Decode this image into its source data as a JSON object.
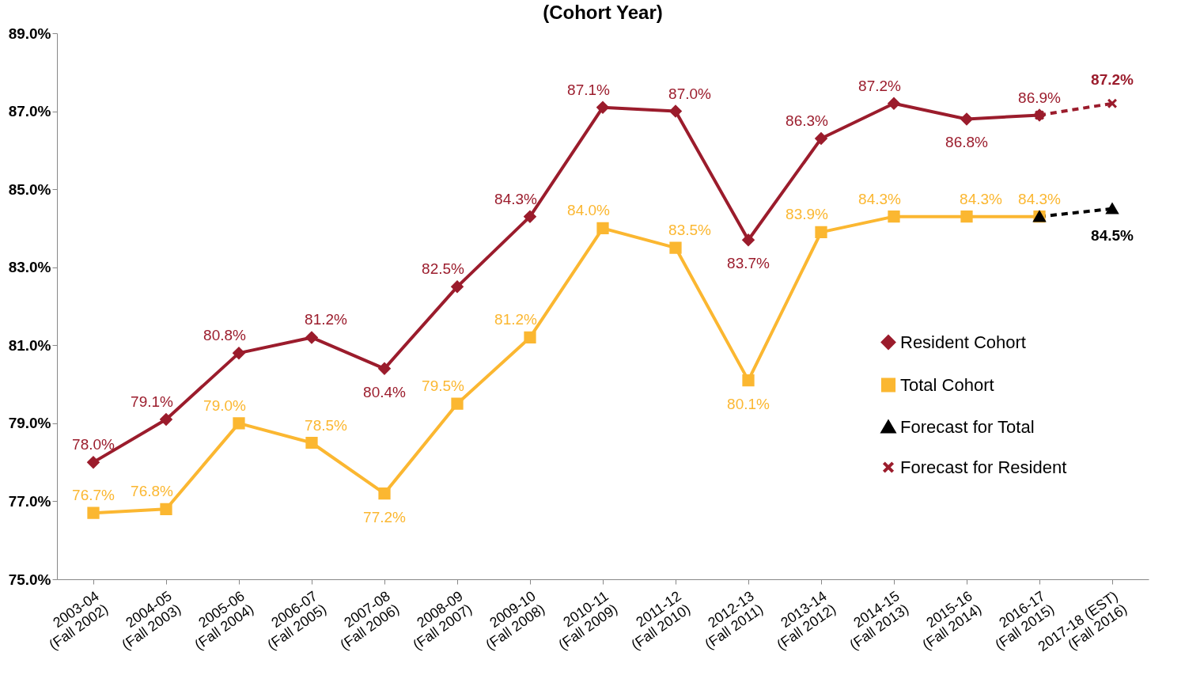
{
  "chart_data": {
    "type": "line",
    "title": "(Cohort Year)",
    "categories": [
      "2003-04\n(Fall 2002)",
      "2004-05\n(Fall 2003)",
      "2005-06\n(Fall 2004)",
      "2006-07\n(Fall 2005)",
      "2007-08\n(Fall 2006)",
      "2008-09\n(Fall 2007)",
      "2009-10\n(Fall 2008)",
      "2010-11\n(Fall 2009)",
      "2011-12\n(Fall 2010)",
      "2012-13\n(Fall 2011)",
      "2013-14\n(Fall 2012)",
      "2014-15\n(Fall 2013)",
      "2015-16\n(Fall 2014)",
      "2016-17\n(Fall 2015)",
      "2017-18 (EST)\n(Fall 2016)"
    ],
    "ylim": [
      75,
      89
    ],
    "yticks": [
      {
        "value": 75,
        "label": "75.0%"
      },
      {
        "value": 77,
        "label": "77.0%"
      },
      {
        "value": 79,
        "label": "79.0%"
      },
      {
        "value": 81,
        "label": "81.0%"
      },
      {
        "value": 83,
        "label": "83.0%"
      },
      {
        "value": 85,
        "label": "85.0%"
      },
      {
        "value": 87,
        "label": "87.0%"
      },
      {
        "value": 89,
        "label": "89.0%"
      }
    ],
    "grid": false,
    "legend": "right",
    "series": [
      {
        "name": "Resident Cohort",
        "color": "#9b1c2c",
        "marker": "diamond",
        "line_style": "solid",
        "values": [
          78.0,
          79.1,
          80.8,
          81.2,
          80.4,
          82.5,
          84.3,
          87.1,
          87.0,
          83.7,
          86.3,
          87.2,
          86.8,
          86.9,
          null
        ],
        "value_labels": [
          "78.0%",
          "79.1%",
          "80.8%",
          "81.2%",
          "80.4%",
          "82.5%",
          "84.3%",
          "87.1%",
          "87.0%",
          "83.7%",
          "86.3%",
          "87.2%",
          "86.8%",
          "86.9%",
          null
        ]
      },
      {
        "name": "Total Cohort",
        "color": "#fbb731",
        "marker": "square",
        "line_style": "solid",
        "values": [
          76.7,
          76.8,
          79.0,
          78.5,
          77.2,
          79.5,
          81.2,
          84.0,
          83.5,
          80.1,
          83.9,
          84.3,
          84.3,
          84.3,
          null
        ],
        "value_labels": [
          "76.7%",
          "76.8%",
          "79.0%",
          "78.5%",
          "77.2%",
          "79.5%",
          "81.2%",
          "84.0%",
          "83.5%",
          "80.1%",
          "83.9%",
          "84.3%",
          "84.3%",
          "84.3%",
          null
        ]
      },
      {
        "name": "Forecast for Total",
        "color": "#000000",
        "marker": "triangle",
        "line_style": "dashed",
        "values": [
          null,
          null,
          null,
          null,
          null,
          null,
          null,
          null,
          null,
          null,
          null,
          null,
          null,
          84.3,
          84.5
        ],
        "value_labels": [
          null,
          null,
          null,
          null,
          null,
          null,
          null,
          null,
          null,
          null,
          null,
          null,
          null,
          null,
          "84.5%"
        ]
      },
      {
        "name": "Forecast for Resident",
        "color": "#9b1c2c",
        "marker": "cross",
        "line_style": "dashed",
        "values": [
          null,
          null,
          null,
          null,
          null,
          null,
          null,
          null,
          null,
          null,
          null,
          null,
          null,
          86.9,
          87.2
        ],
        "value_labels": [
          null,
          null,
          null,
          null,
          null,
          null,
          null,
          null,
          null,
          null,
          null,
          null,
          null,
          null,
          "87.2%"
        ]
      }
    ]
  }
}
